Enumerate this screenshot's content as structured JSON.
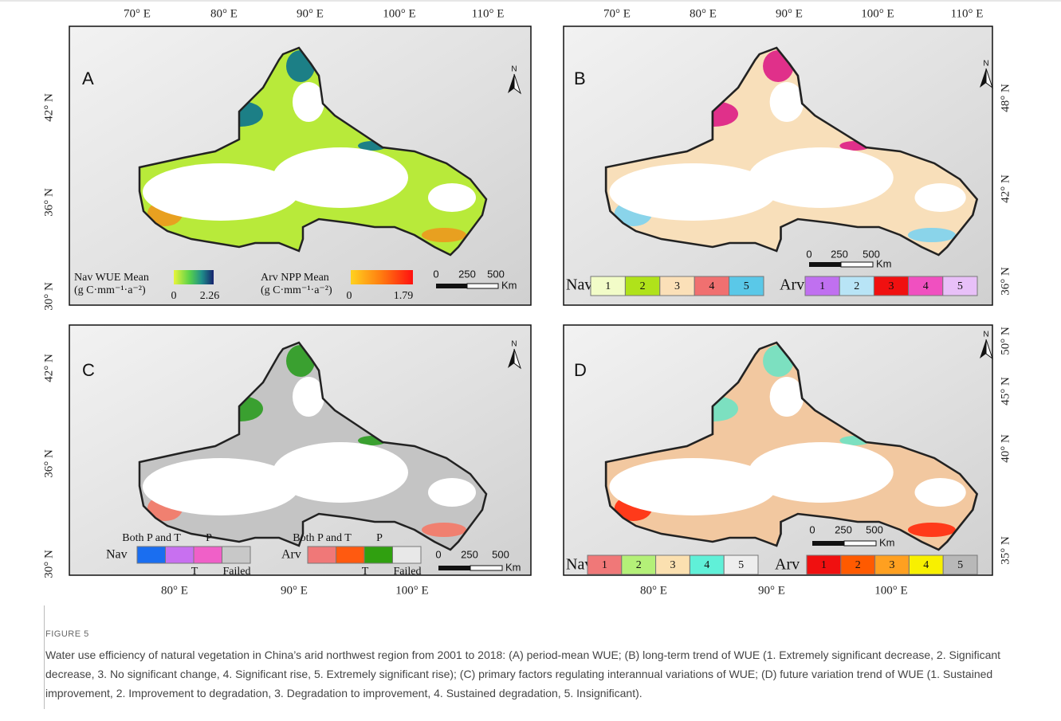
{
  "panels": [
    {
      "label": "A",
      "north": "N",
      "top_ticks": [
        "70° E",
        "80° E",
        "90° E",
        "100° E",
        "110° E"
      ],
      "side_ticks": [
        "42° N",
        "36° N",
        "30° N"
      ],
      "legend": {
        "nav_title": "Nav WUE Mean",
        "nav_unit": "(g C·mm⁻¹·a⁻²)",
        "nav_min": "0",
        "nav_max": "2.26",
        "arv_title": "Arv NPP Mean",
        "arv_unit": "(g C·mm⁻¹·a⁻²)",
        "arv_min": "0",
        "arv_max": "1.79"
      },
      "scale": [
        "0",
        "250",
        "500",
        "Km"
      ]
    },
    {
      "label": "B",
      "north": "N",
      "top_ticks": [
        "70° E",
        "80° E",
        "90° E",
        "100° E",
        "110° E"
      ],
      "side_ticks": [
        "48° N",
        "42° N",
        "36° N"
      ],
      "legend": {
        "nav": "Nav",
        "nav_classes": [
          "1",
          "2",
          "3",
          "4",
          "5"
        ],
        "arv": "Arv",
        "arv_classes": [
          "1",
          "2",
          "3",
          "4",
          "5"
        ]
      },
      "scale": [
        "0",
        "250",
        "500",
        "Km"
      ]
    },
    {
      "label": "C",
      "north": "N",
      "bottom_ticks": [
        "80° E",
        "90° E",
        "100° E"
      ],
      "side_ticks": [
        "42° N",
        "36° N",
        "30° N"
      ],
      "legend": {
        "nav": "Nav",
        "nav_classes": [
          "Both P and T",
          "T",
          "P",
          "Failed"
        ],
        "arv": "Arv",
        "arv_classes": [
          "Both P and T",
          "T",
          "P",
          "Failed"
        ]
      },
      "scale": [
        "0",
        "250",
        "500",
        "Km"
      ]
    },
    {
      "label": "D",
      "north": "N",
      "bottom_ticks": [
        "80° E",
        "90° E",
        "100° E"
      ],
      "side_ticks": [
        "50° N",
        "45° N",
        "40° N",
        "35° N"
      ],
      "legend": {
        "nav": "Nav",
        "nav_classes": [
          "1",
          "2",
          "3",
          "4",
          "5"
        ],
        "arv": "Arv",
        "arv_classes": [
          "1",
          "2",
          "3",
          "4",
          "5"
        ]
      },
      "scale": [
        "0",
        "250",
        "500",
        "Km"
      ]
    }
  ],
  "caption": {
    "label": "FIGURE 5",
    "text": "Water use efficiency of natural vegetation in China’s arid northwest region from 2001 to 2018: (A) period-mean WUE; (B) long-term trend of WUE (1. Extremely significant decrease, 2. Significant decrease, 3. No significant change, 4. Significant rise, 5. Extremely significant rise); (C) primary factors regulating interannual variations of WUE; (D) future variation trend of WUE (1. Sustained improvement, 2. Improvement to degradation, 3. Degradation to improvement, 4. Sustained degradation, 5. Insignificant)."
  }
}
